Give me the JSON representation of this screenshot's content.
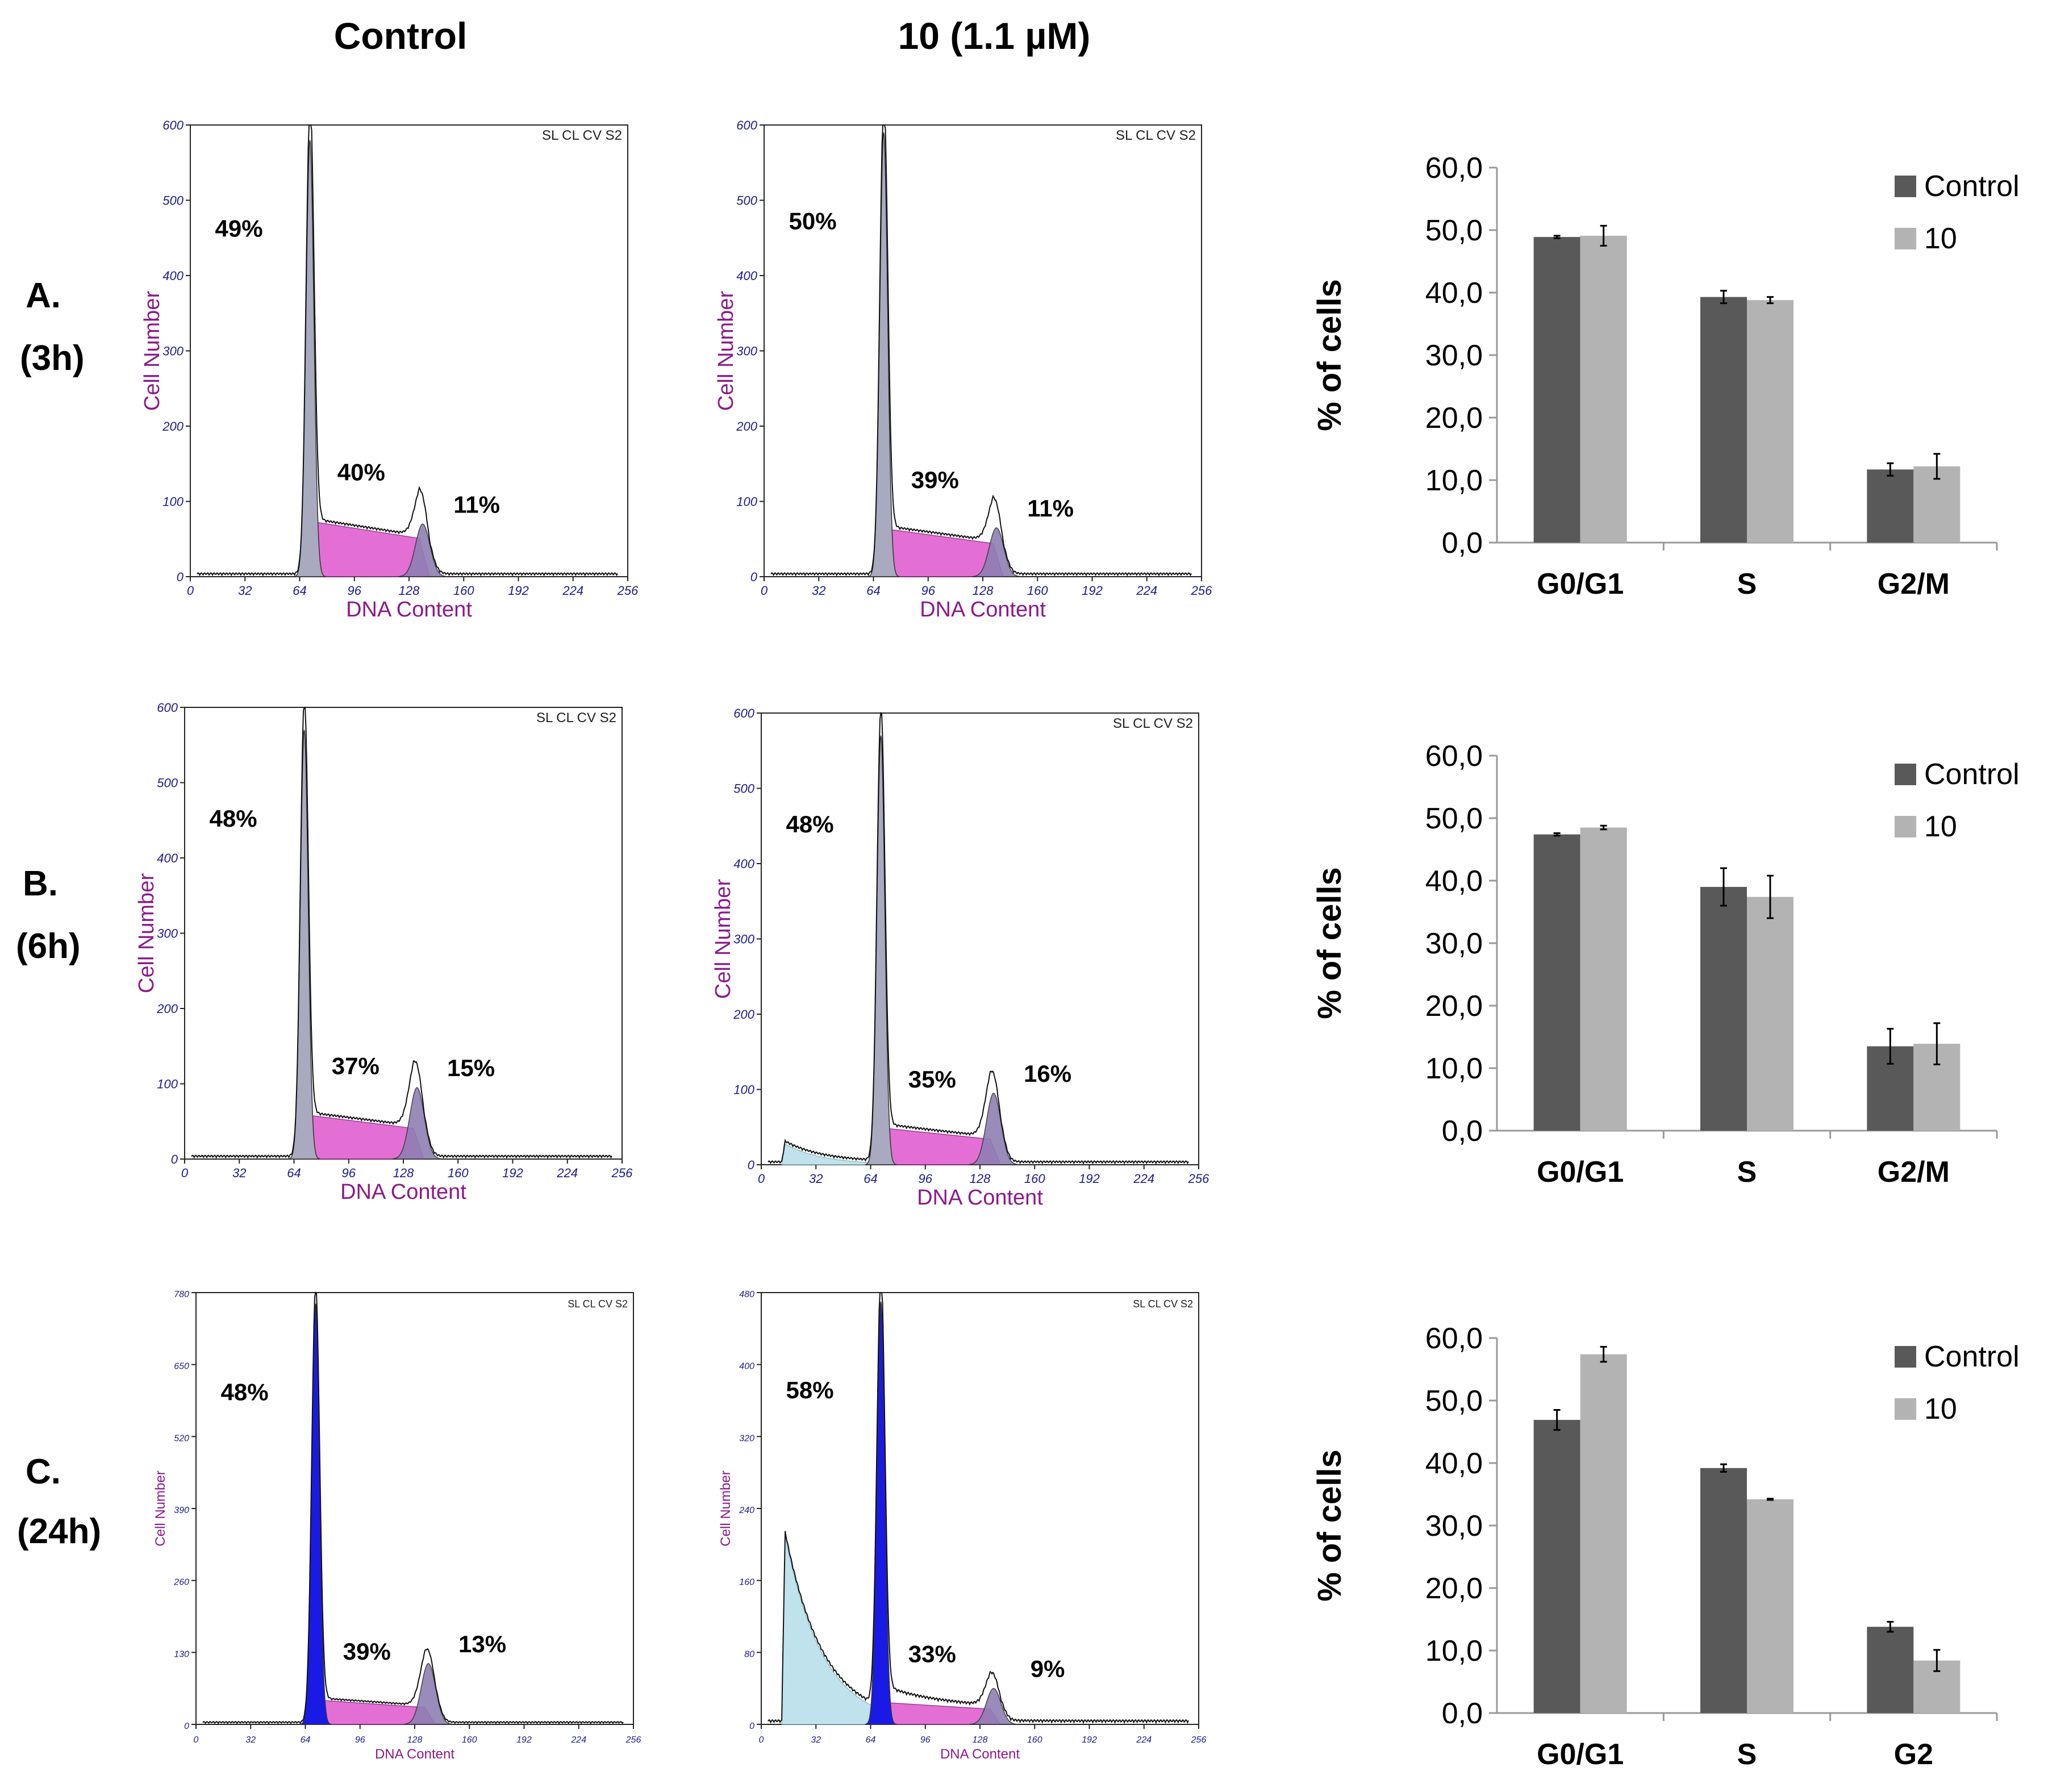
{
  "column_headers": {
    "control": "Control",
    "treated": "10 (1.1 µM)"
  },
  "row_labels": [
    {
      "letter": "A.",
      "time": "(3h)"
    },
    {
      "letter": "B.",
      "time": "(6h)"
    },
    {
      "letter": "C.",
      "time": "(24h)"
    }
  ],
  "histogram_common": {
    "xlabel": "DNA Content",
    "ylabel": "Cell Number",
    "legend_code": "SL CL CV S2",
    "x_ticks": [
      "0",
      "32",
      "64",
      "96",
      "128",
      "160",
      "192",
      "224",
      "256"
    ]
  },
  "colors": {
    "g1_gray": "#a9a9bf",
    "g1_blue": "#1a1ae6",
    "s_magenta": "#e060d0",
    "g2": "#8e7fb3",
    "debris": "#bfe2ec",
    "axis_text": "#1c1c8c",
    "axis_label": "#8a1a8a",
    "bar_control": "#595959",
    "bar_treated": "#b3b3b3"
  },
  "chart_data": [
    {
      "type": "histogram",
      "row": "A",
      "group": "Control",
      "ymax": 600,
      "y_ticks": [
        "0",
        "100",
        "200",
        "300",
        "400",
        "500",
        "600"
      ],
      "phase_labels": [
        "49%",
        "40%",
        "11%"
      ],
      "g1_peak": 580,
      "s_level": 75,
      "g2_peak": 70,
      "debris": 0,
      "style": "gray"
    },
    {
      "type": "histogram",
      "row": "A",
      "group": "10 (1.1 µM)",
      "ymax": 600,
      "y_ticks": [
        "0",
        "100",
        "200",
        "300",
        "400",
        "500",
        "600"
      ],
      "phase_labels": [
        "50%",
        "39%",
        "11%"
      ],
      "g1_peak": 590,
      "s_level": 65,
      "g2_peak": 65,
      "debris": 0,
      "style": "gray"
    },
    {
      "type": "histogram",
      "row": "B",
      "group": "Control",
      "ymax": 600,
      "y_ticks": [
        "0",
        "100",
        "200",
        "300",
        "400",
        "500",
        "600"
      ],
      "phase_labels": [
        "48%",
        "37%",
        "15%"
      ],
      "g1_peak": 570,
      "s_level": 60,
      "g2_peak": 95,
      "debris": 0,
      "style": "gray"
    },
    {
      "type": "histogram",
      "row": "B",
      "group": "10 (1.1 µM)",
      "ymax": 600,
      "y_ticks": [
        "0",
        "100",
        "200",
        "300",
        "400",
        "500",
        "600"
      ],
      "phase_labels": [
        "48%",
        "35%",
        "16%"
      ],
      "g1_peak": 570,
      "s_level": 50,
      "g2_peak": 95,
      "debris": 30,
      "style": "gray"
    },
    {
      "type": "histogram",
      "row": "C",
      "group": "Control",
      "ymax": 780,
      "y_ticks": [
        "0",
        "130",
        "260",
        "390",
        "520",
        "650",
        "780"
      ],
      "phase_labels": [
        "48%",
        "39%",
        "13%"
      ],
      "g1_peak": 760,
      "s_level": 45,
      "g2_peak": 110,
      "debris": 0,
      "style": "blue"
    },
    {
      "type": "histogram",
      "row": "C",
      "group": "10 (1.1 µM)",
      "ymax": 480,
      "y_ticks": [
        "0",
        "80",
        "160",
        "240",
        "320",
        "400",
        "480"
      ],
      "phase_labels": [
        "58%",
        "33%",
        "9%"
      ],
      "g1_peak": 470,
      "s_level": 25,
      "g2_peak": 40,
      "debris": 230,
      "style": "blue"
    },
    {
      "type": "bar",
      "row": "A",
      "ylabel": "% of cells",
      "ylim": [
        0,
        60
      ],
      "y_ticks": [
        "0,0",
        "10,0",
        "20,0",
        "30,0",
        "40,0",
        "50,0",
        "60,0"
      ],
      "categories": [
        "G0/G1",
        "S",
        "G2/M"
      ],
      "series": [
        {
          "name": "Control",
          "values": [
            48.9,
            39.3,
            11.7
          ],
          "errors": [
            0.2,
            1.0,
            1.0
          ]
        },
        {
          "name": "10",
          "values": [
            49.1,
            38.8,
            12.2
          ],
          "errors": [
            1.6,
            0.5,
            2.0
          ]
        }
      ]
    },
    {
      "type": "bar",
      "row": "B",
      "ylabel": "% of cells",
      "ylim": [
        0,
        60
      ],
      "y_ticks": [
        "0,0",
        "10,0",
        "20,0",
        "30,0",
        "40,0",
        "50,0",
        "60,0"
      ],
      "categories": [
        "G0/G1",
        "S",
        "G2/M"
      ],
      "series": [
        {
          "name": "Control",
          "values": [
            47.4,
            39.0,
            13.5
          ],
          "errors": [
            0.2,
            3.0,
            2.8
          ]
        },
        {
          "name": "10",
          "values": [
            48.5,
            37.4,
            13.9
          ],
          "errors": [
            0.3,
            3.4,
            3.3
          ]
        }
      ]
    },
    {
      "type": "bar",
      "row": "C",
      "ylabel": "% of cells",
      "ylim": [
        0,
        60
      ],
      "y_ticks": [
        "0,0",
        "10,0",
        "20,0",
        "30,0",
        "40,0",
        "50,0",
        "60,0"
      ],
      "categories": [
        "G0/G1",
        "S",
        "G2"
      ],
      "series": [
        {
          "name": "Control",
          "values": [
            46.9,
            39.2,
            13.8
          ],
          "errors": [
            1.6,
            0.6,
            0.8
          ]
        },
        {
          "name": "10",
          "values": [
            57.4,
            34.2,
            8.4
          ],
          "errors": [
            1.2,
            0.1,
            1.7
          ]
        }
      ]
    }
  ]
}
